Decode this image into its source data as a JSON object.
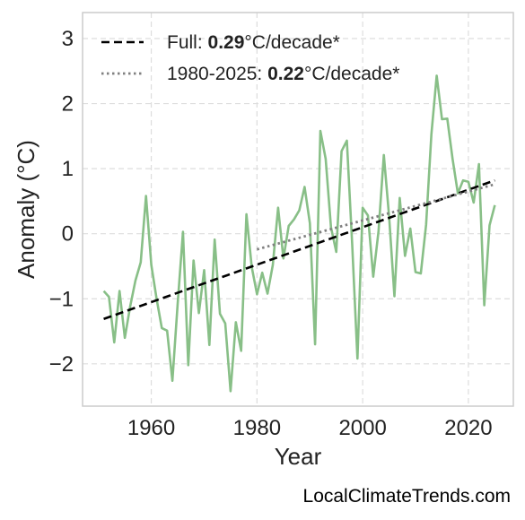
{
  "chart_data": {
    "type": "line",
    "xlabel": "Year",
    "ylabel": "Anomaly (°C)",
    "xlim": [
      1947,
      2028.5
    ],
    "ylim": [
      -2.65,
      3.4
    ],
    "xticks": [
      1960,
      1980,
      2000,
      2020
    ],
    "yticks": [
      -2,
      -1,
      0,
      1,
      2,
      3
    ],
    "grid": true,
    "legend_position": "top-left",
    "series": [
      {
        "name": "",
        "color": "#88bf87",
        "x": [
          1951,
          1952,
          1953,
          1954,
          1955,
          1956,
          1957,
          1958,
          1959,
          1960,
          1961,
          1962,
          1963,
          1964,
          1965,
          1966,
          1967,
          1968,
          1969,
          1970,
          1971,
          1972,
          1973,
          1974,
          1975,
          1976,
          1977,
          1978,
          1979,
          1980,
          1981,
          1982,
          1983,
          1984,
          1985,
          1986,
          1987,
          1988,
          1989,
          1990,
          1991,
          1992,
          1993,
          1994,
          1995,
          1996,
          1997,
          1998,
          1999,
          2000,
          2001,
          2002,
          2003,
          2004,
          2005,
          2006,
          2007,
          2008,
          2009,
          2010,
          2011,
          2012,
          2013,
          2014,
          2015,
          2016,
          2017,
          2018,
          2019,
          2020,
          2021,
          2022,
          2023,
          2024,
          2025
        ],
        "y": [
          -0.88,
          -0.97,
          -1.67,
          -0.88,
          -1.6,
          -1.12,
          -0.72,
          -0.44,
          0.58,
          -0.48,
          -1.0,
          -1.45,
          -1.49,
          -2.26,
          -1.07,
          0.03,
          -2.02,
          -0.41,
          -1.22,
          -0.56,
          -1.71,
          -0.09,
          -1.23,
          -1.38,
          -2.42,
          -1.36,
          -1.8,
          0.3,
          -0.51,
          -0.93,
          -0.6,
          -0.92,
          -0.48,
          0.4,
          -0.38,
          0.12,
          0.22,
          0.36,
          0.72,
          0.16,
          -1.7,
          1.58,
          1.15,
          0.1,
          -0.28,
          1.27,
          1.43,
          -0.15,
          -1.92,
          0.4,
          0.28,
          -0.66,
          0.04,
          1.21,
          0.26,
          -0.96,
          0.55,
          -0.34,
          0.08,
          -0.59,
          -0.61,
          0.14,
          1.53,
          2.43,
          1.76,
          1.77,
          1.15,
          0.62,
          0.82,
          0.8,
          0.48,
          1.07,
          -1.1,
          0.13,
          0.44
        ]
      }
    ],
    "trends": [
      {
        "label_prefix": "Full: ",
        "rate": "0.29",
        "unit": "°C/decade*",
        "style": "dashed",
        "color": "#000000",
        "x": [
          1951,
          2025
        ],
        "y": [
          -1.31,
          0.82
        ]
      },
      {
        "label_prefix": "1980-2025: ",
        "rate": "0.22",
        "unit": "°C/decade*",
        "style": "dotted",
        "color": "#808080",
        "x": [
          1980,
          2025
        ],
        "y": [
          -0.24,
          0.76
        ]
      }
    ]
  },
  "footer": {
    "watermark": "LocalClimateTrends.com"
  }
}
